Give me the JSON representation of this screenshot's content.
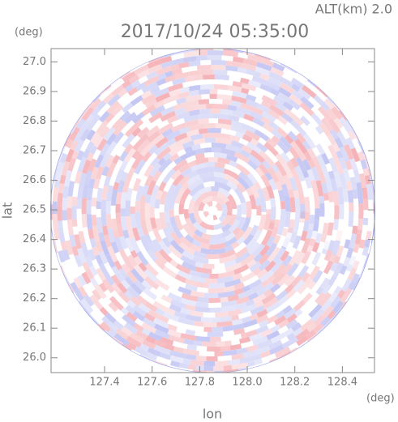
{
  "chart_data": {
    "type": "field",
    "title": "2017/10/24 05:35:00",
    "subtitle": "ALT(km) 2.0",
    "y_unit": "(deg)",
    "x_unit": "(deg)",
    "xlabel": "lon",
    "ylabel": "lat",
    "xlim": [
      127.175,
      128.535
    ],
    "ylim": [
      25.95,
      27.045
    ],
    "xticks": [
      127.4,
      127.6,
      127.8,
      {
        "value": 128,
        "label": "128.0"
      },
      128.2,
      128.4
    ],
    "yticks": [
      {
        "value": 26,
        "label": "26.0"
      },
      26.1,
      26.2,
      26.3,
      26.4,
      26.5,
      26.6,
      26.7,
      26.8,
      26.9,
      {
        "value": 27,
        "label": "27.0"
      }
    ]
  }
}
